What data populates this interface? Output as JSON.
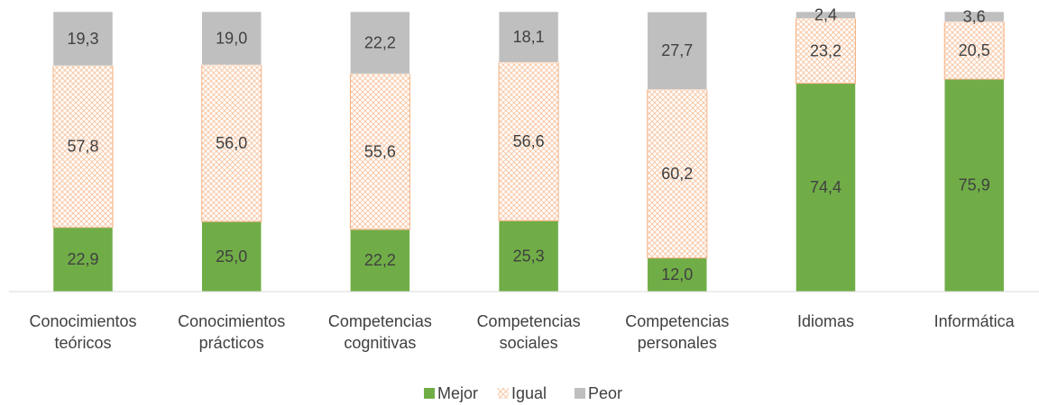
{
  "chart_data": {
    "type": "stacked_bar",
    "categories": [
      "Conocimientos teóricos",
      "Conocimientos prácticos",
      "Competencias cognitivas",
      "Competencias sociales",
      "Competencias personales",
      "Idiomas",
      "Informática"
    ],
    "series": [
      {
        "name": "Mejor",
        "color": "#70ad47",
        "values": [
          22.9,
          25.0,
          22.2,
          25.3,
          12.0,
          74.4,
          75.9
        ],
        "value_labels": [
          "22,9",
          "25,0",
          "22,2",
          "25,3",
          "12,0",
          "74,4",
          "75,9"
        ]
      },
      {
        "name": "Igual",
        "color": "#f4b183",
        "hatch": true,
        "values": [
          57.8,
          56.0,
          55.6,
          56.6,
          60.2,
          23.2,
          20.5
        ],
        "value_labels": [
          "57,8",
          "56,0",
          "55,6",
          "56,6",
          "60,2",
          "23,2",
          "20,5"
        ]
      },
      {
        "name": "Peor",
        "color": "#bfbfbf",
        "values": [
          19.3,
          19.0,
          22.2,
          18.1,
          27.7,
          2.4,
          3.6
        ],
        "value_labels": [
          "19,3",
          "19,0",
          "22,2",
          "18,1",
          "27,7",
          "2,4",
          "3,6"
        ]
      }
    ],
    "ylim": [
      0,
      100
    ],
    "legend": "bottom"
  }
}
